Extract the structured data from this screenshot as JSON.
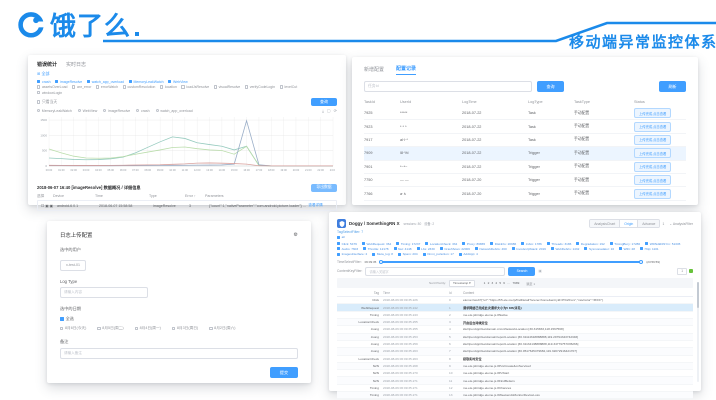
{
  "slide": {
    "brand": "饿了么",
    "title": "移动端异常监控体系",
    "accent": "#1b8aea"
  },
  "panel_trend": {
    "tabs": {
      "t1": "错误统计",
      "t2": "实时日志"
    },
    "all_link": "⊞ 全部",
    "filters_checked": [
      "crash",
      "imageResolve",
      "watch_app_overload",
      "MemoryLeakWatch",
      "WebView"
    ],
    "filters_unchecked": [
      "assetsOverLoad",
      "anr_error",
      "errorWatch",
      "customResolution",
      "location",
      "loadJsResolve",
      "visualResolve",
      "verifyCodeLogin",
      "levelCut",
      "windowLogin"
    ],
    "only_today": "只看当天",
    "query_button": "查询",
    "toolbar_icons": {
      "download": "⤓",
      "fullscreen": "▢",
      "refresh": "⟳"
    },
    "radio_options": [
      "MemoryLeakWatch",
      "WebView",
      "imageResolve",
      "crash",
      "watch_app_overload"
    ],
    "chart_data": {
      "type": "line",
      "x_ticks": [
        "00:00",
        "01:00",
        "02:00",
        "03:00",
        "04:00",
        "05:00",
        "06:00",
        "07:00",
        "08:00",
        "09:00",
        "10:00",
        "11:00",
        "12:00",
        "13:00",
        "14:00",
        "15:00",
        "16:00",
        "17:00",
        "18:00",
        "19:00",
        "20:00",
        "21:00",
        "22:00",
        "23:00"
      ],
      "y_ticks": [
        0,
        500,
        1000,
        1500
      ],
      "ylim": [
        0,
        1600
      ],
      "grid": true,
      "series": [
        {
          "name": "watch_app_overload",
          "color": "#8fc7bb",
          "values": [
            260,
            240,
            215,
            205,
            210,
            235,
            290,
            430,
            610,
            790,
            950,
            900,
            760,
            700,
            645,
            525,
            645,
            25,
            5,
            5,
            5,
            5,
            5,
            5
          ]
        },
        {
          "name": "imageResolve",
          "color": "#b7dba8",
          "values": [
            555,
            430,
            320,
            262,
            252,
            262,
            305,
            385,
            455,
            525,
            605,
            620,
            565,
            525,
            505,
            385,
            645,
            18,
            4,
            4,
            4,
            4,
            4,
            4
          ]
        },
        {
          "name": "crash",
          "color": "#93a9c4",
          "values": [
            15,
            12,
            10,
            10,
            10,
            10,
            12,
            15,
            18,
            20,
            22,
            25,
            28,
            30,
            35,
            60,
            1480,
            40,
            5,
            5,
            5,
            5,
            5,
            5
          ]
        },
        {
          "name": "MemoryLeakWatch",
          "color": "#d79d99",
          "values": [
            22,
            20,
            18,
            18,
            18,
            20,
            24,
            30,
            36,
            40,
            55,
            70,
            95,
            100,
            92,
            80,
            60,
            8,
            3,
            3,
            3,
            3,
            3,
            3
          ]
        }
      ]
    },
    "section_title": "2018-06-07 16:40 [imageResolve] 数据概况 / 详细信息",
    "export_button": "导出数据",
    "table": {
      "headers": [
        "选择",
        "Device",
        "Time",
        "Type",
        "Error ↑",
        "Parameters"
      ],
      "row": {
        "icons": "☐ ▣ ▣",
        "device": "android-6.0.1",
        "time": "2018-06-07 15:58:58",
        "type": "imageResolve",
        "error": "3",
        "params": "{\"count\":1,\"nativeParameter\":\"com.android.picture.loader\"} …",
        "link": "查看详情"
      }
    }
  },
  "panel_tasks": {
    "tabs": {
      "t1": "新增配置",
      "t2": "配置记录"
    },
    "search_placeholder": "任务Id",
    "query_button": "查询",
    "refresh_button": "刷新",
    "headers": [
      "TaskId",
      "UserId",
      "LogTime",
      "LogType",
      "TaskType",
      "Status"
    ],
    "rows": [
      {
        "id": "7925",
        "user": "*****",
        "time": "2018-07-22",
        "type": "Task",
        "task": "手动配置",
        "status": "上传完成,点击查看"
      },
      {
        "id": "7923",
        "user": "* * *",
        "time": "2018-07-22",
        "type": "Task",
        "task": "手动配置",
        "status": "上传完成,点击查看"
      },
      {
        "id": "7917",
        "user": "al·l·*",
        "time": "2018-07-22",
        "type": "Task",
        "task": "手动配置",
        "status": "上传完成,点击查看"
      },
      {
        "id": "7909",
        "user": "l8·%l",
        "time": "2018-07-22",
        "type": "Trigger",
        "task": "手动配置",
        "status": "上传完成,点击查看",
        "highlight": true
      },
      {
        "id": "7901",
        "user": "*~*~",
        "time": "2018-07-22",
        "type": "Trigger",
        "task": "手动配置",
        "status": "上传完成,点击查看"
      },
      {
        "id": "7750",
        "user": "— —",
        "time": "2018-07-20",
        "type": "Trigger",
        "task": "手动配置",
        "status": "上传完成,点击查看"
      },
      {
        "id": "7766",
        "user": "a·∧",
        "time": "2018-07-20",
        "type": "Trigger",
        "task": "手动配置",
        "status": "上传完成,点击查看"
      }
    ]
  },
  "panel_upload": {
    "title": "日志上传配置",
    "user_label": "选中的用户",
    "user_chip": "x-test-01",
    "logtype_label": "Log Type",
    "logtype_placeholder": "请输入内容",
    "dates_label": "选中的日期",
    "select_all": "全选",
    "dates": [
      "8月6日(今天)",
      "8月5日(周二)",
      "8月4日(周一)",
      "8月3日(周日)",
      "8月2日(周六)"
    ],
    "remark_label": "备注",
    "remark_placeholder": "请输入备注",
    "submit_button": "提交"
  },
  "panel_logview": {
    "title": "Doggy / SomethingRN X",
    "meta": [
      "sessions: 80",
      "设备: 2"
    ],
    "segments": [
      "AnalysisChart",
      "Origin",
      "Advance"
    ],
    "active_segment": "Origin",
    "badge": "1",
    "filter_link": "⌄ AnalysisFilter",
    "tag_filter_label": "TagSelectFilter: 7",
    "all_tag": "all",
    "tags": [
      "Click: 5479",
      "WebRequest: 364",
      "Timing: 17237",
      "LocationCheck: 334",
      "Proxy: 86865",
      "DiskInfo: 20986",
      "Jsbm: 1786",
      "Threads: 3186",
      "Degradation: 192",
      "TimingBury: 17286",
      "WDNdkDiSYm: 51345",
      "Audio: 7603",
      "Throttle: 12178",
      "Net: 4148",
      "Lbs: 2330",
      "CrashScan: 22006",
      "NetworkDebris: 460",
      "InvodeUpStack: 2019",
      "WebDebris: 1432",
      "Sysmonadator: 16",
      "WiFi: 28",
      "Http: 1101",
      "ImagesInterface: 2",
      "Meta_log: 8",
      "Spam: 204",
      "Omni_pv/action: 17",
      "AddApp: 4"
    ],
    "time_filter_label": "TimeSelectFilter:",
    "time_start": "06:09:35",
    "time_end": "(23:59:59)",
    "content_filter_label": "ContentKeyFilter:",
    "content_placeholder": "请输入关键字",
    "search_button": "Search",
    "pager_value": "1",
    "sort_label": "Sort Priority:",
    "sort_value": "Timestamp ▾",
    "pages": [
      "1",
      "2",
      "3",
      "4",
      "5",
      "6",
      "…",
      "7989"
    ],
    "jump_label": "跳至 1",
    "headers": [
      "Tag",
      "Time",
      "Id",
      "Content"
    ],
    "rows": [
      {
        "tag": "Click",
        "time": "2018-08-06 06:09:35.226",
        "id": "0",
        "content": "eleme://web?{\"url\":\"https://h5.ele.me/p/findDetail?scene=home&entryId=P%2Fxxx\",\"navColor\":\"#FFF\"}"
      },
      {
        "tag": "WebRequest",
        "time": "2018-08-06 06:09:35.242",
        "id": "1",
        "content": "请求网络已完成此次请求大小为5 KB(详见)",
        "highlight": true,
        "bold": true
      },
      {
        "tag": "Timing",
        "time": "2018-08-06 06:09:35.243",
        "id": "2",
        "content": "me.ele.jsbridge.eleme.js.#Native"
      },
      {
        "tag": "LocationCheck",
        "time": "2018-08-06 06:09:35.255",
        "id": "3",
        "content": "开启后台持续定位",
        "bold": true
      },
      {
        "tag": "Jsong",
        "time": "2018-08-06 06:09:35.255",
        "id": "4",
        "content": "ideOpenApp/Getdomain.cn/onNetworkLocation [30.315833,118.1567568]"
      },
      {
        "tag": "Jsong",
        "time": "2018-08-06 06:09:35.253",
        "id": "5",
        "content": "ideOpenApp/Getdomain/reportLocation [30.31114618888888,119.29794343742346]"
      },
      {
        "tag": "Jsong",
        "time": "2018-08-06 06:09:35.259",
        "id": "6",
        "content": "ideOpenApp/Getdomain/reportLocation [30.31134138888888,119.34779757035266]"
      },
      {
        "tag": "Jsong",
        "time": "2018-08-06 06:09:35.263",
        "id": "7",
        "content": "ideOpenApp/Getdomain/reportLocation [30.0517645479682,119.32072916421707]"
      },
      {
        "tag": "LocationCheck",
        "time": "2018-08-06 06:09:35.263",
        "id": "8",
        "content": "获取实时定位",
        "bold": true
      },
      {
        "tag": "N2N",
        "time": "2018-08-06 06:09:35.268",
        "id": "9",
        "content": "me.ele.jsbridge.eleme.js.#PvsCreate&onService2"
      },
      {
        "tag": "N2N",
        "time": "2018-08-06 06:09:35.270",
        "id": "10",
        "content": "me.ele.jsbridge.eleme.js.#PvStart"
      },
      {
        "tag": "N2N",
        "time": "2018-08-06 06:09:35.271",
        "id": "11",
        "content": "me.ele.jsbridge.eleme.js.#FindBetters"
      },
      {
        "tag": "Timing",
        "time": "2018-08-06 06:09:35.271",
        "id": "12",
        "content": "me.ele.jsbridge.eleme.js.#Chances"
      },
      {
        "tag": "Timing",
        "time": "2018-08-06 06:09:35.271",
        "id": "13",
        "content": "me.ele.jsbridge.eleme.js.#WeekendsMonitorDeviceLoss"
      }
    ]
  }
}
